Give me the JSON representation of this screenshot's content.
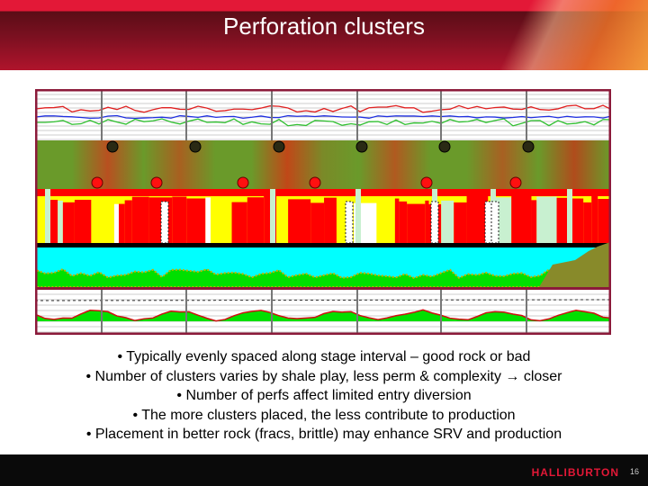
{
  "slide": {
    "title": "Perforation clusters",
    "bullets": [
      "• Typically evenly spaced along stage interval – good rock or bad",
      "• Number of clusters varies by shale play, less perm & complexity → closer",
      "• Number of perfs affect limited entry diversion",
      "• The more clusters placed, the less contribute to production",
      "• Placement in better rock (fracs, brittle) may enhance SRV and production"
    ]
  },
  "footer": {
    "logo": "HALLIBURTON",
    "page_number": "16"
  },
  "colors": {
    "brand_red": "#e31837",
    "frame": "#8b1a3a",
    "facies_red": "#ff0000",
    "facies_yellow": "#ffff00",
    "cyan": "#00ffff",
    "green": "#00e000"
  }
}
